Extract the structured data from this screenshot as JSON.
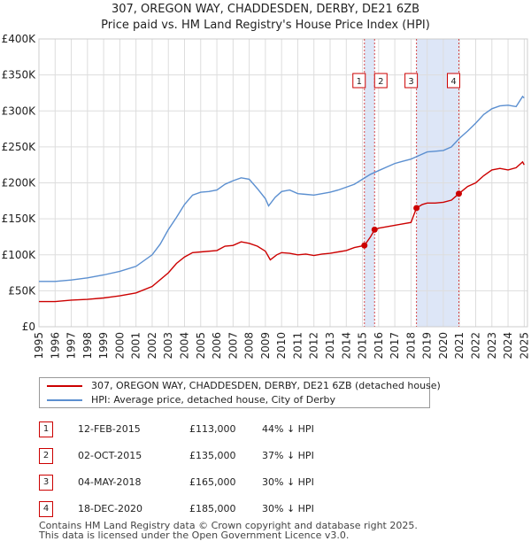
{
  "title": "307, OREGON WAY, CHADDESDEN, DERBY, DE21 6ZB",
  "subtitle": "Price paid vs. HM Land Registry's House Price Index (HPI)",
  "chart_data": {
    "type": "line",
    "title": "307, OREGON WAY, CHADDESDEN, DERBY, DE21 6ZB",
    "subtitle": "Price paid vs. HM Land Registry's House Price Index (HPI)",
    "xlabel": "",
    "ylabel": "",
    "xlim": [
      1995,
      2025.2
    ],
    "ylim": [
      0,
      400000
    ],
    "x_ticks": [
      1995,
      1996,
      1997,
      1998,
      1999,
      2000,
      2001,
      2002,
      2003,
      2004,
      2005,
      2006,
      2007,
      2008,
      2009,
      2010,
      2011,
      2012,
      2013,
      2014,
      2015,
      2016,
      2017,
      2018,
      2019,
      2020,
      2021,
      2022,
      2023,
      2024,
      2025
    ],
    "y_ticks": [
      0,
      50000,
      100000,
      150000,
      200000,
      250000,
      300000,
      350000,
      400000
    ],
    "y_tick_labels": [
      "£0",
      "£50K",
      "£100K",
      "£150K",
      "£200K",
      "£250K",
      "£300K",
      "£350K",
      "£400K"
    ],
    "grid": true,
    "series": [
      {
        "name": "307, OREGON WAY, CHADDESDEN, DERBY, DE21 6ZB (detached house)",
        "color": "#cc0000",
        "points": [
          [
            1995.0,
            35000
          ],
          [
            1996.0,
            35000
          ],
          [
            1997.0,
            37000
          ],
          [
            1998.0,
            38000
          ],
          [
            1999.0,
            40000
          ],
          [
            2000.0,
            43000
          ],
          [
            2001.0,
            47000
          ],
          [
            2002.0,
            56000
          ],
          [
            2003.0,
            75000
          ],
          [
            2003.5,
            88000
          ],
          [
            2004.0,
            97000
          ],
          [
            2004.5,
            103000
          ],
          [
            2005.0,
            104000
          ],
          [
            2006.0,
            106000
          ],
          [
            2006.5,
            112000
          ],
          [
            2007.0,
            113000
          ],
          [
            2007.5,
            118000
          ],
          [
            2008.0,
            116000
          ],
          [
            2008.5,
            112000
          ],
          [
            2009.0,
            105000
          ],
          [
            2009.3,
            93000
          ],
          [
            2009.7,
            100000
          ],
          [
            2010.0,
            103000
          ],
          [
            2010.5,
            102000
          ],
          [
            2011.0,
            100000
          ],
          [
            2011.5,
            101000
          ],
          [
            2012.0,
            99000
          ],
          [
            2012.5,
            101000
          ],
          [
            2013.0,
            102000
          ],
          [
            2013.5,
            104000
          ],
          [
            2014.0,
            106000
          ],
          [
            2014.5,
            110000
          ],
          [
            2015.12,
            113000
          ],
          [
            2015.5,
            125000
          ],
          [
            2015.75,
            135000
          ],
          [
            2016.0,
            137000
          ],
          [
            2016.5,
            139000
          ],
          [
            2017.0,
            141000
          ],
          [
            2017.5,
            143000
          ],
          [
            2018.0,
            145000
          ],
          [
            2018.34,
            165000
          ],
          [
            2018.7,
            170000
          ],
          [
            2019.0,
            172000
          ],
          [
            2019.5,
            172000
          ],
          [
            2020.0,
            173000
          ],
          [
            2020.5,
            176000
          ],
          [
            2020.96,
            185000
          ],
          [
            2021.5,
            195000
          ],
          [
            2022.0,
            200000
          ],
          [
            2022.5,
            210000
          ],
          [
            2023.0,
            218000
          ],
          [
            2023.5,
            220000
          ],
          [
            2024.0,
            218000
          ],
          [
            2024.5,
            221000
          ],
          [
            2024.9,
            229000
          ],
          [
            2025.0,
            225000
          ]
        ]
      },
      {
        "name": "HPI: Average price, detached house, City of Derby",
        "color": "#5b8fd0",
        "points": [
          [
            1995.0,
            63000
          ],
          [
            1996.0,
            63000
          ],
          [
            1997.0,
            65000
          ],
          [
            1998.0,
            68000
          ],
          [
            1999.0,
            72000
          ],
          [
            2000.0,
            77000
          ],
          [
            2001.0,
            84000
          ],
          [
            2002.0,
            100000
          ],
          [
            2002.5,
            115000
          ],
          [
            2003.0,
            135000
          ],
          [
            2003.5,
            152000
          ],
          [
            2004.0,
            170000
          ],
          [
            2004.5,
            183000
          ],
          [
            2005.0,
            187000
          ],
          [
            2005.5,
            188000
          ],
          [
            2006.0,
            190000
          ],
          [
            2006.5,
            198000
          ],
          [
            2007.0,
            203000
          ],
          [
            2007.5,
            207000
          ],
          [
            2008.0,
            205000
          ],
          [
            2008.5,
            192000
          ],
          [
            2009.0,
            178000
          ],
          [
            2009.2,
            168000
          ],
          [
            2009.6,
            180000
          ],
          [
            2010.0,
            188000
          ],
          [
            2010.5,
            190000
          ],
          [
            2011.0,
            185000
          ],
          [
            2011.5,
            184000
          ],
          [
            2012.0,
            183000
          ],
          [
            2012.5,
            185000
          ],
          [
            2013.0,
            187000
          ],
          [
            2013.5,
            190000
          ],
          [
            2014.0,
            194000
          ],
          [
            2014.5,
            198000
          ],
          [
            2015.0,
            205000
          ],
          [
            2015.5,
            212000
          ],
          [
            2016.0,
            217000
          ],
          [
            2016.5,
            222000
          ],
          [
            2017.0,
            227000
          ],
          [
            2017.5,
            230000
          ],
          [
            2018.0,
            233000
          ],
          [
            2018.5,
            238000
          ],
          [
            2019.0,
            243000
          ],
          [
            2019.5,
            244000
          ],
          [
            2020.0,
            245000
          ],
          [
            2020.5,
            250000
          ],
          [
            2021.0,
            262000
          ],
          [
            2021.5,
            272000
          ],
          [
            2022.0,
            283000
          ],
          [
            2022.5,
            295000
          ],
          [
            2023.0,
            303000
          ],
          [
            2023.5,
            307000
          ],
          [
            2024.0,
            308000
          ],
          [
            2024.5,
            306000
          ],
          [
            2024.9,
            320000
          ],
          [
            2025.0,
            318000
          ]
        ]
      }
    ],
    "transactions": [
      {
        "id": "1",
        "x": 2015.12,
        "y": 113000
      },
      {
        "id": "2",
        "x": 2015.75,
        "y": 135000
      },
      {
        "id": "3",
        "x": 2018.34,
        "y": 165000
      },
      {
        "id": "4",
        "x": 2020.96,
        "y": 185000
      }
    ],
    "shaded_ranges": [
      [
        2015.12,
        2015.75
      ],
      [
        2018.34,
        2020.96
      ]
    ],
    "colors": {
      "grid": "#dddddd",
      "shade": "#dde6f7",
      "vline": "#cc0000",
      "axis_text": "#222222"
    }
  },
  "legend": {
    "items": [
      {
        "label": "307, OREGON WAY, CHADDESDEN, DERBY, DE21 6ZB (detached house)",
        "color": "#cc0000"
      },
      {
        "label": "HPI: Average price, detached house, City of Derby",
        "color": "#5b8fd0"
      }
    ]
  },
  "transactions_table": [
    {
      "num": "1",
      "date": "12-FEB-2015",
      "price": "£113,000",
      "hpi": "44% ↓ HPI"
    },
    {
      "num": "2",
      "date": "02-OCT-2015",
      "price": "£135,000",
      "hpi": "37% ↓ HPI"
    },
    {
      "num": "3",
      "date": "04-MAY-2018",
      "price": "£165,000",
      "hpi": "30% ↓ HPI"
    },
    {
      "num": "4",
      "date": "18-DEC-2020",
      "price": "£185,000",
      "hpi": "30% ↓ HPI"
    }
  ],
  "footer": {
    "line1": "Contains HM Land Registry data © Crown copyright and database right 2025.",
    "line2": "This data is licensed under the Open Government Licence v3.0."
  }
}
